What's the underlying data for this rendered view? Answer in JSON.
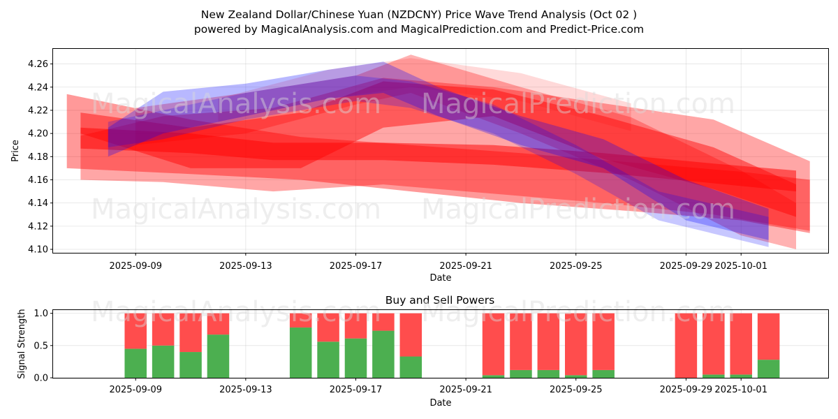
{
  "title_line1": "New Zealand Dollar/Chinese Yuan (NZDCNY) Price Wave Trend Analysis (Oct 02 )",
  "title_line2": "powered by MagicalAnalysis.com and MagicalPrediction.com and Predict-Price.com",
  "watermarks": [
    "MagicalAnalysis.com",
    "MagicalPrediction.com"
  ],
  "colors": {
    "buy": "#4caf50",
    "sell": "#ff4d4d",
    "red_band": "#ff0000",
    "blue_band": "#0000ff"
  },
  "chart_data": [
    {
      "type": "area",
      "xlabel": "Date",
      "ylabel": "Price",
      "x_ticks": [
        "2025-09-09",
        "2025-09-13",
        "2025-09-17",
        "2025-09-21",
        "2025-09-25",
        "2025-09-29",
        "2025-10-01"
      ],
      "y_ticks": [
        "4.10",
        "4.12",
        "4.14",
        "4.16",
        "4.18",
        "4.20",
        "4.22",
        "4.24",
        "4.26"
      ],
      "ylim": [
        4.097,
        4.273
      ],
      "xlim": [
        "2025-09-06T00:00",
        "2025-10-04T04:00"
      ],
      "grid": true,
      "bands": [
        {
          "color": "red",
          "alpha": 0.45,
          "upper": [
            [
              "2025-09-07T00:00",
              4.218
            ],
            [
              "2025-09-11",
              4.205
            ],
            [
              "2025-09-15",
              4.218
            ],
            [
              "2025-09-18",
              4.245
            ],
            [
              "2025-09-22",
              4.238
            ],
            [
              "2025-09-26",
              4.215
            ],
            [
              "2025-09-30",
              4.188
            ],
            [
              "2025-10-03",
              4.156
            ]
          ],
          "lower": [
            [
              "2025-09-07T00:00",
              4.2
            ],
            [
              "2025-09-11",
              4.17
            ],
            [
              "2025-09-15",
              4.17
            ],
            [
              "2025-09-18",
              4.205
            ],
            [
              "2025-09-22",
              4.215
            ],
            [
              "2025-09-26",
              4.178
            ],
            [
              "2025-09-30",
              4.152
            ],
            [
              "2025-10-03",
              4.128
            ]
          ]
        },
        {
          "color": "red",
          "alpha": 0.5,
          "upper": [
            [
              "2025-09-07T00:00",
              4.205
            ],
            [
              "2025-09-11",
              4.2
            ],
            [
              "2025-09-14",
              4.192
            ],
            [
              "2025-09-18",
              4.192
            ],
            [
              "2025-09-22",
              4.19
            ],
            [
              "2025-09-26",
              4.183
            ],
            [
              "2025-09-30",
              4.174
            ],
            [
              "2025-10-03",
              4.168
            ]
          ],
          "lower": [
            [
              "2025-09-07T00:00",
              4.187
            ],
            [
              "2025-09-11",
              4.183
            ],
            [
              "2025-09-14",
              4.177
            ],
            [
              "2025-09-18",
              4.177
            ],
            [
              "2025-09-22",
              4.173
            ],
            [
              "2025-09-26",
              4.166
            ],
            [
              "2025-09-30",
              4.157
            ],
            [
              "2025-10-03",
              4.15
            ]
          ]
        },
        {
          "color": "red",
          "alpha": 0.4,
          "upper": [
            [
              "2025-09-06T12:00",
              4.234
            ],
            [
              "2025-09-11",
              4.212
            ],
            [
              "2025-09-15",
              4.197
            ],
            [
              "2025-09-19",
              4.19
            ],
            [
              "2025-09-23",
              4.183
            ],
            [
              "2025-09-27",
              4.175
            ],
            [
              "2025-10-01",
              4.167
            ],
            [
              "2025-10-03T12:00",
              4.16
            ]
          ],
          "lower": [
            [
              "2025-09-06T12:00",
              4.17
            ],
            [
              "2025-09-11",
              4.165
            ],
            [
              "2025-09-15",
              4.16
            ],
            [
              "2025-09-19",
              4.15
            ],
            [
              "2025-09-23",
              4.14
            ],
            [
              "2025-09-27",
              4.133
            ],
            [
              "2025-10-01",
              4.125
            ],
            [
              "2025-10-03T12:00",
              4.114
            ]
          ]
        },
        {
          "color": "red",
          "alpha": 0.35,
          "upper": [
            [
              "2025-09-07T00:00",
              4.198
            ],
            [
              "2025-09-10",
              4.215
            ],
            [
              "2025-09-14",
              4.222
            ],
            [
              "2025-09-18",
              4.248
            ],
            [
              "2025-09-22",
              4.24
            ],
            [
              "2025-09-26",
              4.226
            ],
            [
              "2025-09-30",
              4.212
            ],
            [
              "2025-10-03T12:00",
              4.176
            ]
          ],
          "lower": [
            [
              "2025-09-07T00:00",
              4.16
            ],
            [
              "2025-09-10",
              4.158
            ],
            [
              "2025-09-14",
              4.15
            ],
            [
              "2025-09-18",
              4.156
            ],
            [
              "2025-09-22",
              4.148
            ],
            [
              "2025-09-26",
              4.14
            ],
            [
              "2025-09-30",
              4.13
            ],
            [
              "2025-10-03T12:00",
              4.116
            ]
          ]
        },
        {
          "color": "red",
          "alpha": 0.3,
          "upper": [
            [
              "2025-09-09",
              4.222
            ],
            [
              "2025-09-13",
              4.235
            ],
            [
              "2025-09-17",
              4.25
            ],
            [
              "2025-09-19",
              4.268
            ],
            [
              "2025-09-23",
              4.24
            ],
            [
              "2025-09-27",
              4.214
            ],
            [
              "2025-10-01",
              4.168
            ],
            [
              "2025-10-03",
              4.14
            ]
          ],
          "lower": [
            [
              "2025-09-09",
              4.19
            ],
            [
              "2025-09-13",
              4.2
            ],
            [
              "2025-09-17",
              4.225
            ],
            [
              "2025-09-19",
              4.235
            ],
            [
              "2025-09-23",
              4.2
            ],
            [
              "2025-09-27",
              4.16
            ],
            [
              "2025-10-01",
              4.112
            ],
            [
              "2025-10-03",
              4.1
            ]
          ]
        },
        {
          "color": "red",
          "alpha": 0.15,
          "upper": [
            [
              "2025-09-12",
              4.23
            ],
            [
              "2025-09-16",
              4.255
            ],
            [
              "2025-09-19",
              4.265
            ],
            [
              "2025-09-23",
              4.252
            ],
            [
              "2025-09-27",
              4.226
            ]
          ],
          "lower": [
            [
              "2025-09-12",
              4.21
            ],
            [
              "2025-09-16",
              4.23
            ],
            [
              "2025-09-19",
              4.24
            ],
            [
              "2025-09-23",
              4.228
            ],
            [
              "2025-09-27",
              4.202
            ]
          ]
        },
        {
          "color": "blue",
          "alpha": 0.28,
          "upper": [
            [
              "2025-09-08",
              4.205
            ],
            [
              "2025-09-10",
              4.236
            ],
            [
              "2025-09-13",
              4.243
            ],
            [
              "2025-09-16",
              4.255
            ],
            [
              "2025-09-18",
              4.262
            ],
            [
              "2025-09-20",
              4.24
            ],
            [
              "2025-09-23",
              4.215
            ],
            [
              "2025-09-26",
              4.195
            ],
            [
              "2025-09-29",
              4.16
            ],
            [
              "2025-10-02",
              4.135
            ]
          ],
          "lower": [
            [
              "2025-09-08",
              4.18
            ],
            [
              "2025-09-10",
              4.2
            ],
            [
              "2025-09-13",
              4.215
            ],
            [
              "2025-09-16",
              4.23
            ],
            [
              "2025-09-18",
              4.235
            ],
            [
              "2025-09-20",
              4.215
            ],
            [
              "2025-09-23",
              4.19
            ],
            [
              "2025-09-26",
              4.17
            ],
            [
              "2025-09-29",
              4.125
            ],
            [
              "2025-10-02",
              4.108
            ]
          ]
        },
        {
          "color": "blue",
          "alpha": 0.22,
          "upper": [
            [
              "2025-09-08",
              4.21
            ],
            [
              "2025-09-10",
              4.22
            ],
            [
              "2025-09-13",
              4.235
            ],
            [
              "2025-09-17",
              4.25
            ],
            [
              "2025-09-19",
              4.245
            ],
            [
              "2025-09-22",
              4.225
            ],
            [
              "2025-09-25",
              4.19
            ],
            [
              "2025-09-28",
              4.15
            ],
            [
              "2025-10-02",
              4.128
            ]
          ],
          "lower": [
            [
              "2025-09-08",
              4.188
            ],
            [
              "2025-09-10",
              4.195
            ],
            [
              "2025-09-13",
              4.212
            ],
            [
              "2025-09-17",
              4.228
            ],
            [
              "2025-09-19",
              4.222
            ],
            [
              "2025-09-22",
              4.2
            ],
            [
              "2025-09-25",
              4.165
            ],
            [
              "2025-09-28",
              4.125
            ],
            [
              "2025-10-02",
              4.102
            ]
          ]
        }
      ]
    },
    {
      "type": "bar",
      "title": "Buy and Sell Powers",
      "xlabel": "Date",
      "ylabel": "Signal Strength",
      "x_ticks": [
        "2025-09-09",
        "2025-09-13",
        "2025-09-17",
        "2025-09-21",
        "2025-09-25",
        "2025-09-29",
        "2025-10-01"
      ],
      "y_ticks": [
        "0.0",
        "0.5",
        "1.0"
      ],
      "ylim": [
        0,
        1.05
      ],
      "grid": true,
      "categories": [
        "2025-09-09",
        "2025-09-10",
        "2025-09-11",
        "2025-09-12",
        "2025-09-15",
        "2025-09-16",
        "2025-09-17",
        "2025-09-18",
        "2025-09-19",
        "2025-09-22",
        "2025-09-23",
        "2025-09-24",
        "2025-09-25",
        "2025-09-26",
        "2025-09-29",
        "2025-09-30",
        "2025-10-01",
        "2025-10-02"
      ],
      "series": [
        {
          "name": "Buy",
          "values": [
            0.45,
            0.5,
            0.4,
            0.67,
            0.78,
            0.56,
            0.61,
            0.73,
            0.33,
            0.04,
            0.12,
            0.12,
            0.04,
            0.12,
            0.0,
            0.05,
            0.05,
            0.28
          ]
        },
        {
          "name": "Sell",
          "values": [
            0.55,
            0.5,
            0.6,
            0.33,
            0.22,
            0.44,
            0.39,
            0.27,
            0.67,
            0.96,
            0.88,
            0.88,
            0.96,
            0.88,
            1.0,
            0.95,
            0.95,
            0.72
          ]
        }
      ]
    }
  ]
}
